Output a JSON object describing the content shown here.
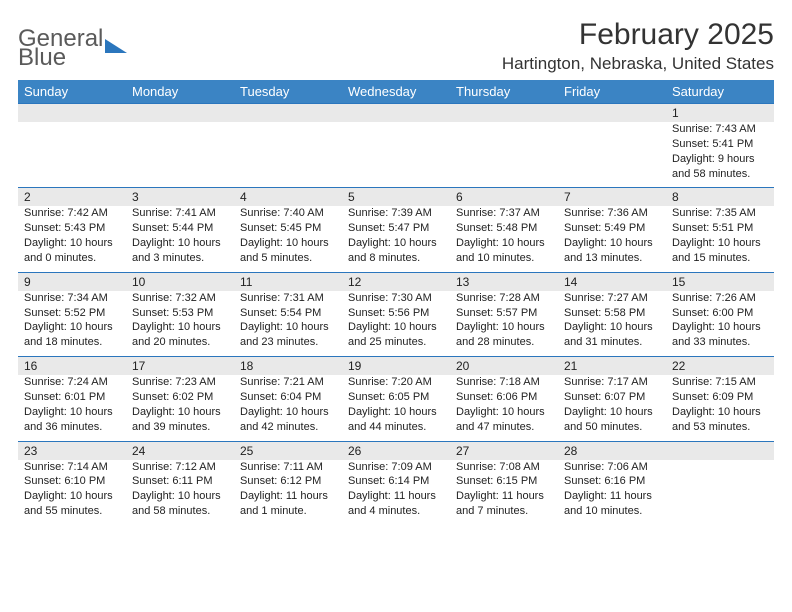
{
  "logo": {
    "line1": "General",
    "line2": "Blue"
  },
  "title": "February 2025",
  "location": "Hartington, Nebraska, United States",
  "colors": {
    "header_bg": "#3b84c4",
    "header_text": "#ffffff",
    "date_row_bg": "#e9e9e9",
    "week_divider": "#2b76bd",
    "text": "#222222",
    "logo_gray": "#5a5a5a",
    "logo_blue": "#2b76bd"
  },
  "weekdays": [
    "Sunday",
    "Monday",
    "Tuesday",
    "Wednesday",
    "Thursday",
    "Friday",
    "Saturday"
  ],
  "weeks": [
    [
      {
        "date": "",
        "sunrise": "",
        "sunset": "",
        "daylight": ""
      },
      {
        "date": "",
        "sunrise": "",
        "sunset": "",
        "daylight": ""
      },
      {
        "date": "",
        "sunrise": "",
        "sunset": "",
        "daylight": ""
      },
      {
        "date": "",
        "sunrise": "",
        "sunset": "",
        "daylight": ""
      },
      {
        "date": "",
        "sunrise": "",
        "sunset": "",
        "daylight": ""
      },
      {
        "date": "",
        "sunrise": "",
        "sunset": "",
        "daylight": ""
      },
      {
        "date": "1",
        "sunrise": "Sunrise: 7:43 AM",
        "sunset": "Sunset: 5:41 PM",
        "daylight": "Daylight: 9 hours and 58 minutes."
      }
    ],
    [
      {
        "date": "2",
        "sunrise": "Sunrise: 7:42 AM",
        "sunset": "Sunset: 5:43 PM",
        "daylight": "Daylight: 10 hours and 0 minutes."
      },
      {
        "date": "3",
        "sunrise": "Sunrise: 7:41 AM",
        "sunset": "Sunset: 5:44 PM",
        "daylight": "Daylight: 10 hours and 3 minutes."
      },
      {
        "date": "4",
        "sunrise": "Sunrise: 7:40 AM",
        "sunset": "Sunset: 5:45 PM",
        "daylight": "Daylight: 10 hours and 5 minutes."
      },
      {
        "date": "5",
        "sunrise": "Sunrise: 7:39 AM",
        "sunset": "Sunset: 5:47 PM",
        "daylight": "Daylight: 10 hours and 8 minutes."
      },
      {
        "date": "6",
        "sunrise": "Sunrise: 7:37 AM",
        "sunset": "Sunset: 5:48 PM",
        "daylight": "Daylight: 10 hours and 10 minutes."
      },
      {
        "date": "7",
        "sunrise": "Sunrise: 7:36 AM",
        "sunset": "Sunset: 5:49 PM",
        "daylight": "Daylight: 10 hours and 13 minutes."
      },
      {
        "date": "8",
        "sunrise": "Sunrise: 7:35 AM",
        "sunset": "Sunset: 5:51 PM",
        "daylight": "Daylight: 10 hours and 15 minutes."
      }
    ],
    [
      {
        "date": "9",
        "sunrise": "Sunrise: 7:34 AM",
        "sunset": "Sunset: 5:52 PM",
        "daylight": "Daylight: 10 hours and 18 minutes."
      },
      {
        "date": "10",
        "sunrise": "Sunrise: 7:32 AM",
        "sunset": "Sunset: 5:53 PM",
        "daylight": "Daylight: 10 hours and 20 minutes."
      },
      {
        "date": "11",
        "sunrise": "Sunrise: 7:31 AM",
        "sunset": "Sunset: 5:54 PM",
        "daylight": "Daylight: 10 hours and 23 minutes."
      },
      {
        "date": "12",
        "sunrise": "Sunrise: 7:30 AM",
        "sunset": "Sunset: 5:56 PM",
        "daylight": "Daylight: 10 hours and 25 minutes."
      },
      {
        "date": "13",
        "sunrise": "Sunrise: 7:28 AM",
        "sunset": "Sunset: 5:57 PM",
        "daylight": "Daylight: 10 hours and 28 minutes."
      },
      {
        "date": "14",
        "sunrise": "Sunrise: 7:27 AM",
        "sunset": "Sunset: 5:58 PM",
        "daylight": "Daylight: 10 hours and 31 minutes."
      },
      {
        "date": "15",
        "sunrise": "Sunrise: 7:26 AM",
        "sunset": "Sunset: 6:00 PM",
        "daylight": "Daylight: 10 hours and 33 minutes."
      }
    ],
    [
      {
        "date": "16",
        "sunrise": "Sunrise: 7:24 AM",
        "sunset": "Sunset: 6:01 PM",
        "daylight": "Daylight: 10 hours and 36 minutes."
      },
      {
        "date": "17",
        "sunrise": "Sunrise: 7:23 AM",
        "sunset": "Sunset: 6:02 PM",
        "daylight": "Daylight: 10 hours and 39 minutes."
      },
      {
        "date": "18",
        "sunrise": "Sunrise: 7:21 AM",
        "sunset": "Sunset: 6:04 PM",
        "daylight": "Daylight: 10 hours and 42 minutes."
      },
      {
        "date": "19",
        "sunrise": "Sunrise: 7:20 AM",
        "sunset": "Sunset: 6:05 PM",
        "daylight": "Daylight: 10 hours and 44 minutes."
      },
      {
        "date": "20",
        "sunrise": "Sunrise: 7:18 AM",
        "sunset": "Sunset: 6:06 PM",
        "daylight": "Daylight: 10 hours and 47 minutes."
      },
      {
        "date": "21",
        "sunrise": "Sunrise: 7:17 AM",
        "sunset": "Sunset: 6:07 PM",
        "daylight": "Daylight: 10 hours and 50 minutes."
      },
      {
        "date": "22",
        "sunrise": "Sunrise: 7:15 AM",
        "sunset": "Sunset: 6:09 PM",
        "daylight": "Daylight: 10 hours and 53 minutes."
      }
    ],
    [
      {
        "date": "23",
        "sunrise": "Sunrise: 7:14 AM",
        "sunset": "Sunset: 6:10 PM",
        "daylight": "Daylight: 10 hours and 55 minutes."
      },
      {
        "date": "24",
        "sunrise": "Sunrise: 7:12 AM",
        "sunset": "Sunset: 6:11 PM",
        "daylight": "Daylight: 10 hours and 58 minutes."
      },
      {
        "date": "25",
        "sunrise": "Sunrise: 7:11 AM",
        "sunset": "Sunset: 6:12 PM",
        "daylight": "Daylight: 11 hours and 1 minute."
      },
      {
        "date": "26",
        "sunrise": "Sunrise: 7:09 AM",
        "sunset": "Sunset: 6:14 PM",
        "daylight": "Daylight: 11 hours and 4 minutes."
      },
      {
        "date": "27",
        "sunrise": "Sunrise: 7:08 AM",
        "sunset": "Sunset: 6:15 PM",
        "daylight": "Daylight: 11 hours and 7 minutes."
      },
      {
        "date": "28",
        "sunrise": "Sunrise: 7:06 AM",
        "sunset": "Sunset: 6:16 PM",
        "daylight": "Daylight: 11 hours and 10 minutes."
      },
      {
        "date": "",
        "sunrise": "",
        "sunset": "",
        "daylight": ""
      }
    ]
  ]
}
